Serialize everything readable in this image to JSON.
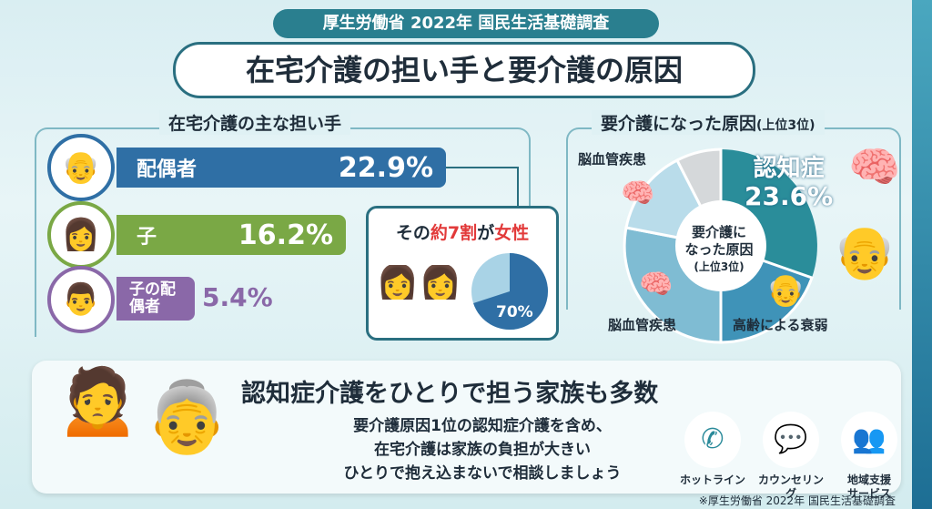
{
  "header": {
    "source_label": "厚生労働省 2022年 国民生活基礎調査",
    "title": "在宅介護の担い手と要介護の原因"
  },
  "caregivers": {
    "heading": "在宅介護の主な担い手",
    "items": [
      {
        "label": "配偶者",
        "value": "22.9%",
        "percent": 22.9,
        "color": "#2f6fa5"
      },
      {
        "label": "子",
        "value": "16.2%",
        "percent": 16.2,
        "color": "#7aa845"
      },
      {
        "label": "子の配偶者",
        "value": "5.4%",
        "percent": 5.4,
        "color": "#8a68a8"
      }
    ],
    "callout": {
      "prefix": "その",
      "highlight1": "約7割",
      "mid": "が",
      "highlight2": "女性",
      "pie_label": "70%",
      "pie_percent": 70
    }
  },
  "causes": {
    "heading": "要介護になった原因",
    "heading_suffix": "(上位3位)",
    "center_line1": "要介護に",
    "center_line2": "なった原因",
    "center_line3": "(上位3位)",
    "top": {
      "label": "認知症",
      "value": "23.6%"
    },
    "labels": [
      "脳血管疾患",
      "脳血管疾患",
      "高齢による衰弱"
    ]
  },
  "bottom": {
    "headline": "認知症介護をひとりで担う家族も多数",
    "lines": [
      "要介護原因1位の認知症介護を含め、",
      "在宅介護は家族の負担が大きい",
      "ひとりで抱え込まないで相談しましょう"
    ],
    "services": [
      {
        "icon": "phone-icon",
        "label": "ホットライン"
      },
      {
        "icon": "chat-icon",
        "label": "カウンセリング"
      },
      {
        "icon": "community-support-icon",
        "label": "地域支援サービス"
      }
    ]
  },
  "footnote": "※厚生労働省 2022年 国民生活基礎調査",
  "colors": {
    "accent": "#2a7f8f",
    "highlight": "#e23a3a"
  }
}
